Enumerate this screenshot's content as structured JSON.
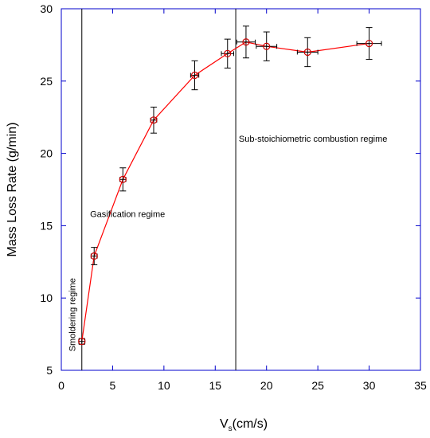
{
  "chart_data": {
    "type": "scatter",
    "title": "",
    "xlabel_main": "V",
    "xlabel_sub": "s",
    "xlabel_unit": "(cm/s)",
    "ylabel": "Mass Loss Rate (g/min)",
    "xlim": [
      0,
      35
    ],
    "ylim": [
      5,
      30
    ],
    "xticks": [
      0,
      5,
      10,
      15,
      20,
      25,
      30,
      35
    ],
    "yticks": [
      5,
      10,
      15,
      20,
      25,
      30
    ],
    "grid": false,
    "colors": {
      "series": "#ff0000",
      "marker": "#cc0000",
      "axis": "#0000cc",
      "error_bar": "#000000"
    },
    "series": [
      {
        "x": [
          2.0,
          3.2,
          6.0,
          9.0,
          13.0,
          16.2,
          18.0,
          20.0,
          24.0,
          30.0
        ],
        "y": [
          7.0,
          12.9,
          18.2,
          22.3,
          25.4,
          26.9,
          27.7,
          27.4,
          27.0,
          27.6
        ],
        "y_err": [
          0.2,
          0.6,
          0.8,
          0.9,
          1.0,
          1.0,
          1.1,
          1.0,
          1.0,
          1.1
        ],
        "x_err": [
          0.3,
          0.3,
          0.3,
          0.3,
          0.4,
          0.6,
          0.9,
          1.0,
          1.0,
          1.2
        ]
      }
    ],
    "vlines": [
      2.0,
      17.0
    ],
    "annotations": [
      {
        "text": "Gasification regime",
        "x": 2.8,
        "y": 15.6,
        "rotation": 0
      },
      {
        "text": "Sub-stoichiometric combustion regime",
        "x": 17.3,
        "y": 20.8,
        "rotation": 0
      },
      {
        "text": "Smoldering regime",
        "x": 1.35,
        "y": 6.3,
        "rotation": -90
      }
    ]
  }
}
